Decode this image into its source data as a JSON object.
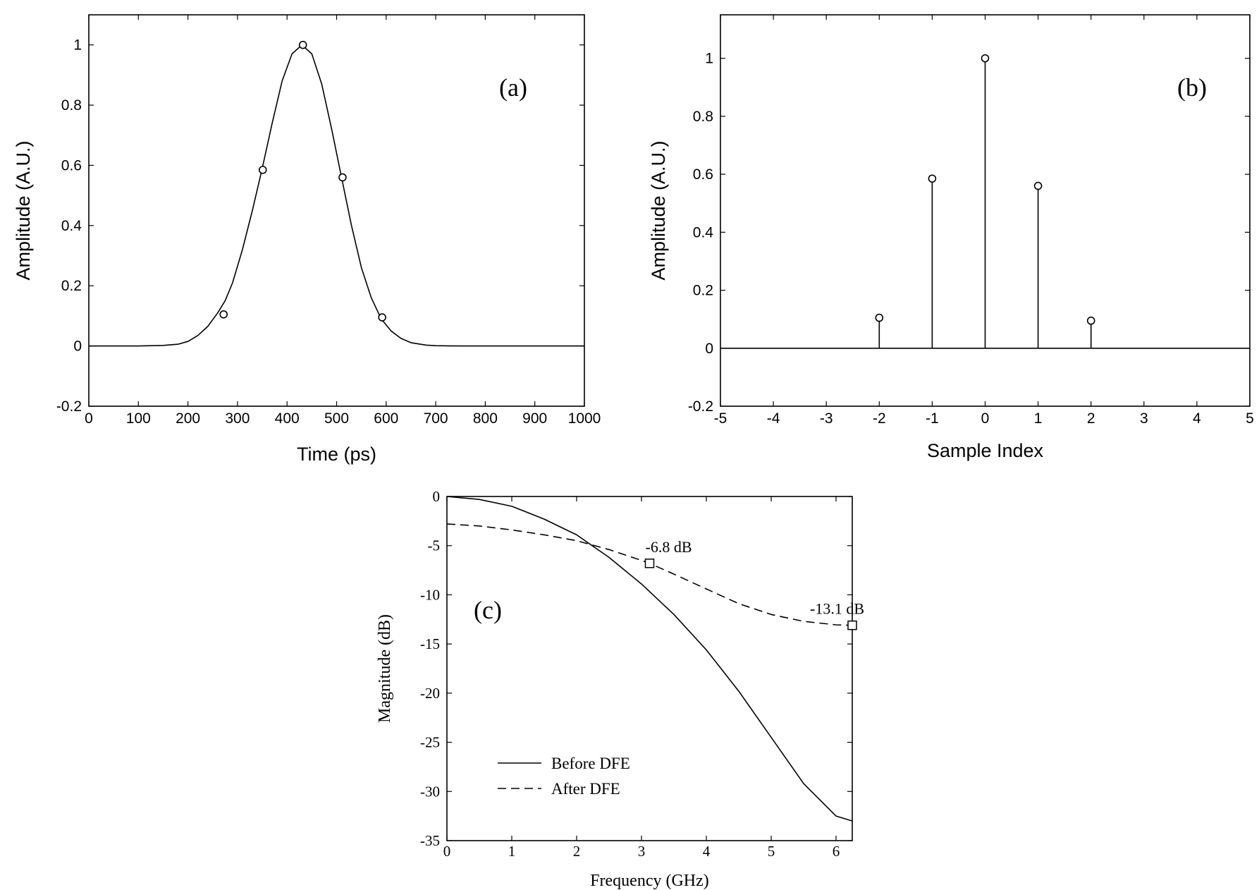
{
  "chart_data": [
    {
      "id": "a",
      "type": "line",
      "panel_label": "(a)",
      "xlabel": "Time (ps)",
      "ylabel": "Amplitude (A.U.)",
      "xlim": [
        0,
        1000
      ],
      "ylim": [
        -0.2,
        1.1
      ],
      "xticks": [
        0,
        100,
        200,
        300,
        400,
        500,
        600,
        700,
        800,
        900,
        1000
      ],
      "xtick_labels": [
        "0",
        "100",
        "200",
        "300",
        "400",
        "500",
        "600",
        "700",
        "800",
        "900",
        "1000"
      ],
      "yticks": [
        -0.2,
        0,
        0.2,
        0.4,
        0.6,
        0.8,
        1
      ],
      "ytick_labels": [
        "-0.2",
        "0",
        "0.2",
        "0.4",
        "0.6",
        "0.8",
        "1"
      ],
      "grid": false,
      "series": [
        {
          "style": "solid",
          "x": [
            0,
            100,
            150,
            180,
            200,
            220,
            240,
            260,
            275,
            290,
            310,
            330,
            350,
            370,
            390,
            410,
            430,
            450,
            470,
            490,
            510,
            530,
            550,
            570,
            590,
            610,
            630,
            650,
            680,
            700,
            750,
            800,
            1000
          ],
          "y": [
            0,
            0,
            0.002,
            0.006,
            0.015,
            0.035,
            0.065,
            0.11,
            0.15,
            0.21,
            0.32,
            0.45,
            0.59,
            0.74,
            0.88,
            0.97,
            1.0,
            0.97,
            0.87,
            0.72,
            0.56,
            0.4,
            0.26,
            0.16,
            0.09,
            0.05,
            0.025,
            0.011,
            0.003,
            0.001,
            0,
            0,
            0
          ]
        }
      ],
      "markers": {
        "shape": "circle",
        "x": [
          272,
          351,
          432,
          512,
          592
        ],
        "y": [
          0.105,
          0.585,
          1.0,
          0.56,
          0.095
        ]
      }
    },
    {
      "id": "b",
      "type": "stem",
      "panel_label": "(b)",
      "xlabel": "Sample Index",
      "ylabel": "Amplitude (A.U.)",
      "xlim": [
        -5,
        5
      ],
      "ylim": [
        -0.2,
        1.15
      ],
      "xticks": [
        -5,
        -4,
        -3,
        -2,
        -1,
        0,
        1,
        2,
        3,
        4,
        5
      ],
      "xtick_labels": [
        "-5",
        "-4",
        "-3",
        "-2",
        "-1",
        "0",
        "1",
        "2",
        "3",
        "4",
        "5"
      ],
      "yticks": [
        -0.2,
        0,
        0.2,
        0.4,
        0.6,
        0.8,
        1
      ],
      "ytick_labels": [
        "-0.2",
        "0",
        "0.2",
        "0.4",
        "0.6",
        "0.8",
        "1"
      ],
      "grid": false,
      "zero_line": true,
      "x": [
        -2,
        -1,
        0,
        1,
        2
      ],
      "y": [
        0.105,
        0.585,
        1.0,
        0.56,
        0.095
      ]
    },
    {
      "id": "c",
      "type": "line",
      "panel_label": "(c)",
      "xlabel": "Frequency (GHz)",
      "ylabel": "Magnitude (dB)",
      "xlim": [
        0,
        6.25
      ],
      "ylim": [
        -35,
        0
      ],
      "xticks": [
        0,
        1,
        2,
        3,
        4,
        5,
        6
      ],
      "xtick_labels": [
        "0",
        "1",
        "2",
        "3",
        "4",
        "5",
        "6"
      ],
      "yticks": [
        -35,
        -30,
        -25,
        -20,
        -15,
        -10,
        -5,
        0
      ],
      "ytick_labels": [
        "-35",
        "-30",
        "-25",
        "-20",
        "-15",
        "-10",
        "-5",
        "0"
      ],
      "grid": false,
      "legend_position": "bottom-left",
      "series": [
        {
          "name": "Before DFE",
          "style": "solid",
          "x": [
            0,
            0.5,
            1,
            1.5,
            2,
            2.5,
            3,
            3.5,
            4,
            4.5,
            5,
            5.5,
            6,
            6.25
          ],
          "y": [
            0,
            -0.3,
            -1.0,
            -2.3,
            -3.9,
            -6.2,
            -8.9,
            -12.0,
            -15.6,
            -19.8,
            -24.5,
            -29.2,
            -32.5,
            -33.0
          ]
        },
        {
          "name": "After DFE",
          "style": "dashed",
          "x": [
            0,
            0.5,
            1,
            1.5,
            2,
            2.5,
            3,
            3.125,
            3.5,
            4,
            4.5,
            5,
            5.5,
            6,
            6.25
          ],
          "y": [
            -2.8,
            -3.0,
            -3.4,
            -3.9,
            -4.5,
            -5.4,
            -6.5,
            -6.8,
            -7.9,
            -9.4,
            -10.9,
            -12.0,
            -12.7,
            -13.05,
            -13.1
          ]
        }
      ],
      "annotations": [
        {
          "text": "-6.8 dB",
          "x": 3.125,
          "y": -6.8,
          "marker": "square"
        },
        {
          "text": "-13.1 dB",
          "x": 6.25,
          "y": -13.1,
          "marker": "square"
        }
      ]
    }
  ]
}
